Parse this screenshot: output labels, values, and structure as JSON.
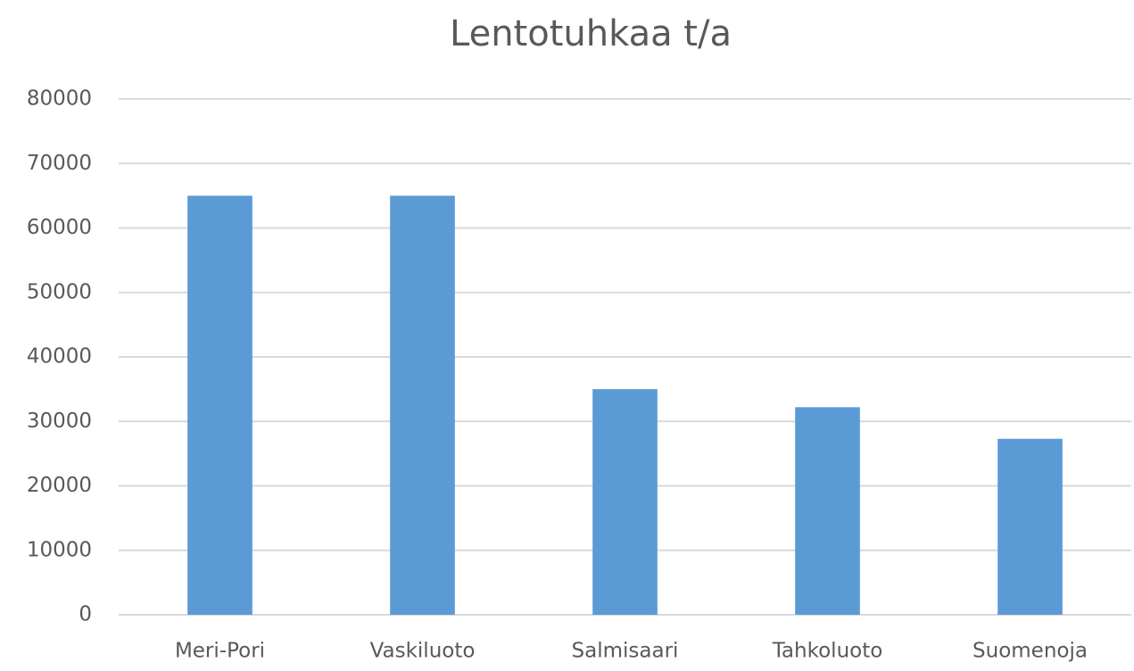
{
  "chart_data": {
    "type": "bar",
    "title": "Lentotuhkaa t/a",
    "categories": [
      "Meri-Pori",
      "Vaskiluoto",
      "Salmisaari",
      "Tahkoluoto",
      "Suomenoja"
    ],
    "values": [
      65000,
      65000,
      35000,
      32200,
      27300
    ],
    "color": "#5b9bd5",
    "ylim": [
      0,
      80000
    ],
    "yticks": [
      0,
      10000,
      20000,
      30000,
      40000,
      50000,
      60000,
      70000,
      80000
    ],
    "grid": true
  }
}
